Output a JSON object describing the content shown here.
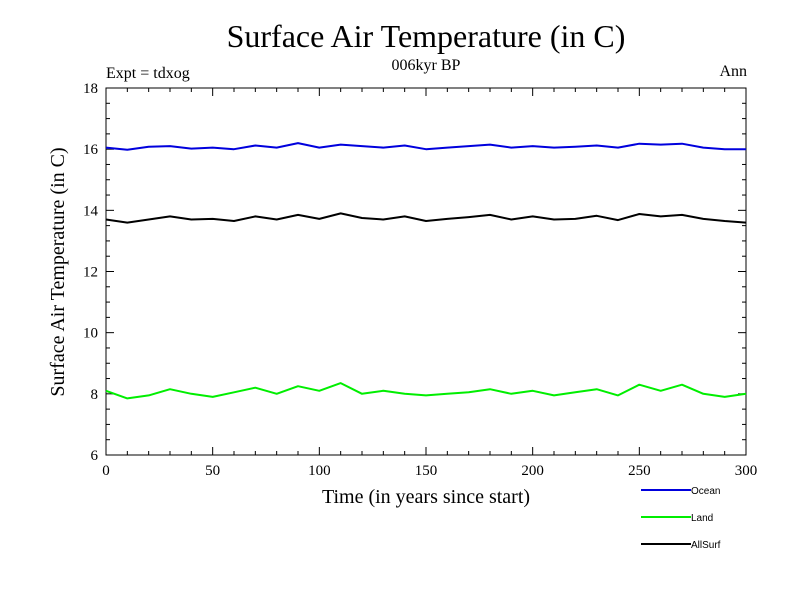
{
  "header": {
    "title": "Surface Air Temperature (in C)",
    "subtitle": "006kyr BP",
    "expt_label": "Expt = tdxog",
    "period_label": "Ann"
  },
  "chart_data": {
    "type": "line",
    "title": "Surface Air Temperature (in C)",
    "subtitle": "006kyr BP",
    "xlabel": "Time (in years since start)",
    "ylabel": "Surface Air Temperature (in C)",
    "xlim": [
      0,
      300
    ],
    "ylim": [
      6,
      18
    ],
    "xticks": [
      0,
      50,
      100,
      150,
      200,
      250,
      300
    ],
    "yticks": [
      6,
      8,
      10,
      12,
      14,
      16,
      18
    ],
    "grid": false,
    "legend_position": "bottom-right",
    "x": [
      0,
      10,
      20,
      30,
      40,
      50,
      60,
      70,
      80,
      90,
      100,
      110,
      120,
      130,
      140,
      150,
      160,
      170,
      180,
      190,
      200,
      210,
      220,
      230,
      240,
      250,
      260,
      270,
      280,
      290,
      300
    ],
    "series": [
      {
        "name": "Ocean",
        "color": "#0000dd",
        "values": [
          16.05,
          15.98,
          16.08,
          16.1,
          16.02,
          16.05,
          16.0,
          16.12,
          16.05,
          16.2,
          16.05,
          16.15,
          16.1,
          16.05,
          16.12,
          16.0,
          16.05,
          16.1,
          16.15,
          16.05,
          16.1,
          16.05,
          16.08,
          16.12,
          16.05,
          16.18,
          16.15,
          16.18,
          16.05,
          16.0,
          16.0
        ]
      },
      {
        "name": "Land",
        "color": "#00ee00",
        "values": [
          8.1,
          7.85,
          7.95,
          8.15,
          8.0,
          7.9,
          8.05,
          8.2,
          8.0,
          8.25,
          8.1,
          8.35,
          8.0,
          8.1,
          8.0,
          7.95,
          8.0,
          8.05,
          8.15,
          8.0,
          8.1,
          7.95,
          8.05,
          8.15,
          7.95,
          8.3,
          8.1,
          8.3,
          8.0,
          7.9,
          8.0
        ]
      },
      {
        "name": "AllSurf",
        "color": "#000000",
        "values": [
          13.7,
          13.6,
          13.7,
          13.8,
          13.7,
          13.72,
          13.65,
          13.8,
          13.7,
          13.85,
          13.72,
          13.9,
          13.75,
          13.7,
          13.8,
          13.65,
          13.72,
          13.78,
          13.85,
          13.7,
          13.8,
          13.7,
          13.72,
          13.82,
          13.68,
          13.88,
          13.8,
          13.85,
          13.72,
          13.65,
          13.6
        ]
      }
    ]
  }
}
